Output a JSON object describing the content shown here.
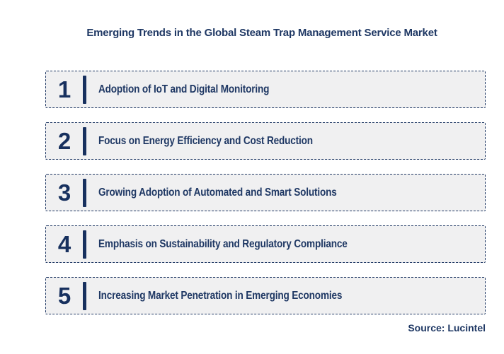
{
  "header": {
    "title": "Emerging Trends in the Global Steam Trap Management Service Market"
  },
  "trends": [
    {
      "number": "1",
      "label": "Adoption of IoT and Digital Monitoring"
    },
    {
      "number": "2",
      "label": "Focus on Energy Efficiency and Cost Reduction"
    },
    {
      "number": "3",
      "label": "Growing Adoption of Automated and Smart Solutions"
    },
    {
      "number": "4",
      "label": "Emphasis on Sustainability and Regulatory Compliance"
    },
    {
      "number": "5",
      "label": "Increasing Market Penetration in Emerging Economies"
    }
  ],
  "footer": {
    "source": "Source: Lucintel"
  },
  "colors": {
    "navy": "#1F3864",
    "accent": "#17305E",
    "box_bg": "#F0F0F1",
    "page_bg": "#FFFFFF"
  }
}
